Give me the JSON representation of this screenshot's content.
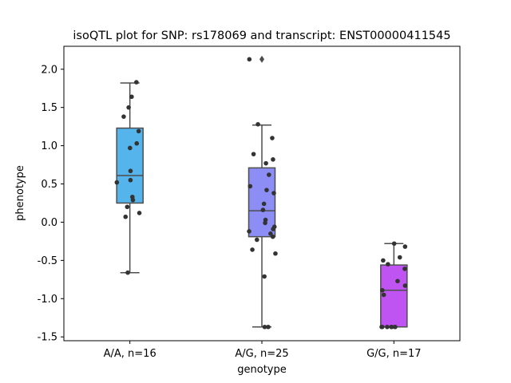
{
  "chart_data": {
    "type": "box",
    "title": "isoQTL plot for SNP: rs178069 and transcript: ENST00000411545",
    "xlabel": "genotype",
    "ylabel": "phenotype",
    "ylim": [
      -1.55,
      2.3
    ],
    "yticks": [
      "-1.5",
      "-1.0",
      "-0.5",
      "0.0",
      "0.5",
      "1.0",
      "1.5",
      "2.0"
    ],
    "grid": false,
    "legend": "none",
    "categories": [
      "A/A, n=16",
      "A/G, n=25",
      "G/G, n=17"
    ],
    "boxes": [
      {
        "category": "A/A, n=16",
        "color": "#56b4ec",
        "q1": 0.25,
        "median": 0.61,
        "q3": 1.23,
        "whisker_low": -0.66,
        "whisker_high": 1.82,
        "outliers": [],
        "points": [
          1.83,
          1.64,
          1.5,
          1.38,
          1.19,
          1.03,
          0.97,
          0.67,
          0.55,
          0.52,
          0.33,
          0.29,
          0.2,
          0.12,
          0.07,
          -0.66
        ]
      },
      {
        "category": "A/G, n=25",
        "color": "#8c8ef6",
        "q1": -0.19,
        "median": 0.15,
        "q3": 0.71,
        "whisker_low": -1.37,
        "whisker_high": 1.27,
        "outliers": [
          2.13
        ],
        "points": [
          2.13,
          1.28,
          1.1,
          0.89,
          0.82,
          0.77,
          0.62,
          0.47,
          0.42,
          0.38,
          0.24,
          0.16,
          0.03,
          -0.01,
          -0.06,
          -0.09,
          -0.12,
          -0.15,
          -0.19,
          -0.23,
          -0.36,
          -0.41,
          -0.71,
          -1.37,
          -1.37
        ]
      },
      {
        "category": "G/G, n=17",
        "color": "#c054f2",
        "q1": -1.37,
        "median": -0.89,
        "q3": -0.56,
        "whisker_low": -1.37,
        "whisker_high": -0.28,
        "outliers": [],
        "points": [
          -0.28,
          -0.32,
          -0.46,
          -0.5,
          -0.55,
          -0.61,
          -0.77,
          -0.83,
          -0.89,
          -0.95,
          -1.37,
          -1.37,
          -1.37,
          -1.37,
          -1.37,
          -1.37,
          -1.37
        ]
      }
    ]
  }
}
